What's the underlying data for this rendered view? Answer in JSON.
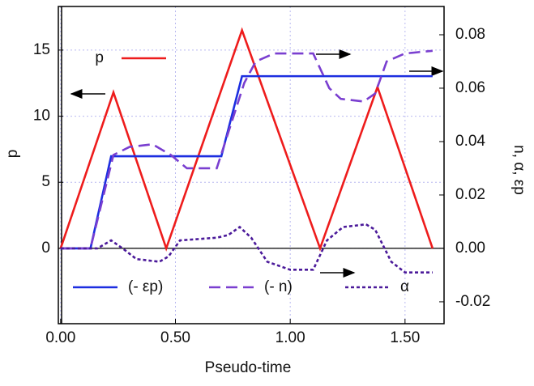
{
  "chart_data": {
    "type": "line",
    "xlabel": "Pseudo-time",
    "ylabel": "p",
    "y2label": "n, α, εp",
    "xlim": [
      -0.01,
      1.67
    ],
    "ylim": [
      -5.7,
      18.3
    ],
    "y2lim": [
      -0.0282,
      0.0906
    ],
    "xticks": [
      {
        "value": 0,
        "label": "0.00"
      },
      {
        "value": 0.5,
        "label": "0.50"
      },
      {
        "value": 1,
        "label": "1.00"
      },
      {
        "value": 1.5,
        "label": "1.50"
      }
    ],
    "yticks": [
      0,
      5,
      10,
      15
    ],
    "y2ticks": [
      {
        "value": -0.02,
        "label": "-0.02"
      },
      {
        "value": 0,
        "label": "0.00"
      },
      {
        "value": 0.02,
        "label": "0.02"
      },
      {
        "value": 0.04,
        "label": "0.04"
      },
      {
        "value": 0.06,
        "label": "0.06"
      },
      {
        "value": 0.08,
        "label": "0.08"
      }
    ],
    "grid": true,
    "series": [
      {
        "name": "p",
        "color": "#ee1c1c",
        "linestyle": "solid",
        "x": [
          0,
          0.23,
          0.46,
          0.79,
          1.13,
          1.38,
          1.62
        ],
        "values": [
          0,
          11.8,
          0,
          16.5,
          0,
          12.2,
          0
        ]
      },
      {
        "name": "(- εp)",
        "color": "#1c2ee0",
        "linestyle": "solid",
        "axis": "y2",
        "x": [
          0,
          0.13,
          0.22,
          0.7,
          0.79,
          1.62
        ],
        "values": [
          0,
          0,
          0.0345,
          0.0345,
          0.0645,
          0.0645
        ]
      },
      {
        "name": "(- n)",
        "color": "#7a3fd0",
        "linestyle": "dashed",
        "axis": "y2",
        "x": [
          0,
          0.13,
          0.23,
          0.3,
          0.4,
          0.48,
          0.55,
          0.68,
          0.8,
          0.85,
          0.93,
          1.1,
          1.17,
          1.22,
          1.32,
          1.37,
          1.42,
          1.5,
          1.62
        ],
        "values": [
          0,
          0,
          0.035,
          0.038,
          0.039,
          0.035,
          0.03,
          0.03,
          0.062,
          0.07,
          0.073,
          0.073,
          0.06,
          0.056,
          0.055,
          0.058,
          0.07,
          0.073,
          0.074
        ]
      },
      {
        "name": "α",
        "color": "#4b1a9a",
        "linestyle": "dotted",
        "axis": "y2",
        "x": [
          0,
          0.16,
          0.22,
          0.27,
          0.33,
          0.43,
          0.47,
          0.52,
          0.68,
          0.73,
          0.78,
          0.83,
          0.9,
          1.0,
          1.1,
          1.16,
          1.23,
          1.33,
          1.37,
          1.44,
          1.5,
          1.62
        ],
        "values": [
          0,
          0,
          0.003,
          0,
          -0.004,
          -0.005,
          -0.003,
          0.003,
          0.004,
          0.005,
          0.008,
          0.004,
          -0.005,
          -0.008,
          -0.008,
          0.003,
          0.008,
          0.009,
          0.007,
          -0.005,
          -0.009,
          -0.009
        ]
      }
    ]
  }
}
